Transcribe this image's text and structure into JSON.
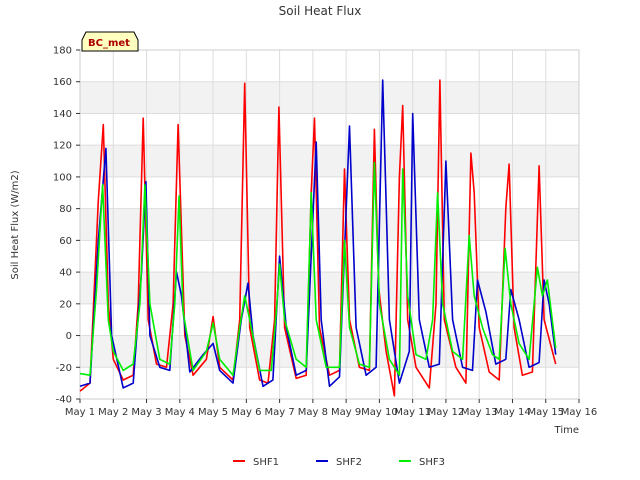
{
  "chart_data": {
    "type": "line",
    "title": "Soil Heat Flux",
    "xlabel": "Time",
    "ylabel": "Soil Heat Flux (W/m2)",
    "badge": "BC_met",
    "ylim": [
      -40,
      180
    ],
    "yticks": [
      -40,
      -20,
      0,
      20,
      40,
      60,
      80,
      100,
      120,
      140,
      160,
      180
    ],
    "xlim": [
      1,
      16
    ],
    "xticks": [
      {
        "value": 1,
        "label": "May 1"
      },
      {
        "value": 2,
        "label": "May 2"
      },
      {
        "value": 3,
        "label": "May 3"
      },
      {
        "value": 4,
        "label": "May 4"
      },
      {
        "value": 5,
        "label": "May 5"
      },
      {
        "value": 6,
        "label": "May 6"
      },
      {
        "value": 7,
        "label": "May 7"
      },
      {
        "value": 8,
        "label": "May 8"
      },
      {
        "value": 9,
        "label": "May 9"
      },
      {
        "value": 10,
        "label": "May 10"
      },
      {
        "value": 11,
        "label": "May 11"
      },
      {
        "value": 12,
        "label": "May 12"
      },
      {
        "value": 13,
        "label": "May 13"
      },
      {
        "value": 14,
        "label": "May 14"
      },
      {
        "value": 15,
        "label": "May 15"
      },
      {
        "value": 16,
        "label": "May 16"
      }
    ],
    "grid": true,
    "legend_position": "bottom",
    "colors": {
      "SHF1": "#ff0000",
      "SHF2": "#0000cc",
      "SHF3": "#00ee00",
      "band": "#f2f2f2",
      "grid": "#dddddd",
      "badge_fill": "#ffffc0"
    },
    "series": [
      {
        "name": "SHF1",
        "color": "#ff0000",
        "points": [
          [
            1.0,
            -35
          ],
          [
            1.3,
            -30
          ],
          [
            1.55,
            85
          ],
          [
            1.7,
            133
          ],
          [
            1.85,
            20
          ],
          [
            2.0,
            -15
          ],
          [
            2.3,
            -28
          ],
          [
            2.6,
            -25
          ],
          [
            2.75,
            20
          ],
          [
            2.9,
            137
          ],
          [
            3.05,
            10
          ],
          [
            3.3,
            -18
          ],
          [
            3.6,
            -20
          ],
          [
            3.8,
            20
          ],
          [
            3.95,
            133
          ],
          [
            4.15,
            0
          ],
          [
            4.4,
            -25
          ],
          [
            4.8,
            -15
          ],
          [
            5.0,
            12
          ],
          [
            5.2,
            -20
          ],
          [
            5.6,
            -28
          ],
          [
            5.8,
            10
          ],
          [
            5.95,
            159
          ],
          [
            6.1,
            5
          ],
          [
            6.4,
            -28
          ],
          [
            6.65,
            -30
          ],
          [
            6.85,
            10
          ],
          [
            6.98,
            144
          ],
          [
            7.15,
            5
          ],
          [
            7.5,
            -27
          ],
          [
            7.8,
            -25
          ],
          [
            7.95,
            90
          ],
          [
            8.05,
            137
          ],
          [
            8.2,
            5
          ],
          [
            8.5,
            -25
          ],
          [
            8.8,
            -22
          ],
          [
            8.95,
            105
          ],
          [
            9.1,
            10
          ],
          [
            9.4,
            -20
          ],
          [
            9.7,
            -22
          ],
          [
            9.85,
            130
          ],
          [
            9.98,
            30
          ],
          [
            10.2,
            -10
          ],
          [
            10.45,
            -38
          ],
          [
            10.6,
            100
          ],
          [
            10.7,
            145
          ],
          [
            10.85,
            10
          ],
          [
            11.1,
            -20
          ],
          [
            11.5,
            -33
          ],
          [
            11.7,
            20
          ],
          [
            11.82,
            161
          ],
          [
            11.95,
            10
          ],
          [
            12.3,
            -20
          ],
          [
            12.6,
            -30
          ],
          [
            12.75,
            115
          ],
          [
            12.85,
            90
          ],
          [
            13.0,
            5
          ],
          [
            13.3,
            -23
          ],
          [
            13.6,
            -28
          ],
          [
            13.8,
            80
          ],
          [
            13.9,
            108
          ],
          [
            14.05,
            5
          ],
          [
            14.3,
            -25
          ],
          [
            14.6,
            -23
          ],
          [
            14.8,
            107
          ],
          [
            14.95,
            10
          ],
          [
            15.2,
            -10
          ],
          [
            15.3,
            -18
          ]
        ]
      },
      {
        "name": "SHF2",
        "color": "#0000cc",
        "points": [
          [
            1.0,
            -32
          ],
          [
            1.3,
            -30
          ],
          [
            1.55,
            60
          ],
          [
            1.78,
            118
          ],
          [
            1.95,
            0
          ],
          [
            2.3,
            -33
          ],
          [
            2.6,
            -30
          ],
          [
            2.85,
            40
          ],
          [
            2.98,
            97
          ],
          [
            3.1,
            0
          ],
          [
            3.4,
            -20
          ],
          [
            3.7,
            -22
          ],
          [
            3.9,
            40
          ],
          [
            4.05,
            25
          ],
          [
            4.3,
            -23
          ],
          [
            4.7,
            -12
          ],
          [
            5.0,
            -5
          ],
          [
            5.2,
            -22
          ],
          [
            5.6,
            -30
          ],
          [
            5.85,
            10
          ],
          [
            6.05,
            33
          ],
          [
            6.2,
            0
          ],
          [
            6.5,
            -32
          ],
          [
            6.8,
            -28
          ],
          [
            7.0,
            50
          ],
          [
            7.2,
            5
          ],
          [
            7.5,
            -25
          ],
          [
            7.8,
            -22
          ],
          [
            8.1,
            122
          ],
          [
            8.25,
            10
          ],
          [
            8.5,
            -32
          ],
          [
            8.8,
            -26
          ],
          [
            9.1,
            132
          ],
          [
            9.3,
            5
          ],
          [
            9.6,
            -25
          ],
          [
            9.9,
            -20
          ],
          [
            10.1,
            161
          ],
          [
            10.3,
            10
          ],
          [
            10.6,
            -30
          ],
          [
            10.9,
            -10
          ],
          [
            11.0,
            140
          ],
          [
            11.2,
            10
          ],
          [
            11.5,
            -20
          ],
          [
            11.8,
            -18
          ],
          [
            12.0,
            110
          ],
          [
            12.2,
            10
          ],
          [
            12.5,
            -20
          ],
          [
            12.8,
            -22
          ],
          [
            12.95,
            35
          ],
          [
            13.2,
            15
          ],
          [
            13.5,
            -18
          ],
          [
            13.8,
            -15
          ],
          [
            13.95,
            29
          ],
          [
            14.2,
            10
          ],
          [
            14.5,
            -20
          ],
          [
            14.8,
            -17
          ],
          [
            14.95,
            35
          ],
          [
            15.1,
            20
          ],
          [
            15.3,
            -12
          ]
        ]
      },
      {
        "name": "SHF3",
        "color": "#00ee00",
        "points": [
          [
            1.0,
            -24
          ],
          [
            1.3,
            -25
          ],
          [
            1.5,
            30
          ],
          [
            1.68,
            95
          ],
          [
            1.85,
            10
          ],
          [
            2.0,
            -10
          ],
          [
            2.3,
            -22
          ],
          [
            2.6,
            -18
          ],
          [
            2.8,
            20
          ],
          [
            2.95,
            95
          ],
          [
            3.1,
            20
          ],
          [
            3.4,
            -15
          ],
          [
            3.7,
            -18
          ],
          [
            3.85,
            20
          ],
          [
            3.98,
            88
          ],
          [
            4.1,
            15
          ],
          [
            4.4,
            -22
          ],
          [
            4.8,
            -10
          ],
          [
            5.0,
            8
          ],
          [
            5.2,
            -15
          ],
          [
            5.6,
            -25
          ],
          [
            5.8,
            5
          ],
          [
            5.95,
            25
          ],
          [
            6.1,
            10
          ],
          [
            6.4,
            -22
          ],
          [
            6.75,
            -22
          ],
          [
            6.9,
            15
          ],
          [
            7.0,
            45
          ],
          [
            7.15,
            10
          ],
          [
            7.5,
            -15
          ],
          [
            7.8,
            -20
          ],
          [
            7.95,
            90
          ],
          [
            8.1,
            10
          ],
          [
            8.4,
            -20
          ],
          [
            8.8,
            -20
          ],
          [
            8.95,
            60
          ],
          [
            9.1,
            5
          ],
          [
            9.4,
            -18
          ],
          [
            9.7,
            -20
          ],
          [
            9.85,
            109
          ],
          [
            10.0,
            20
          ],
          [
            10.3,
            -15
          ],
          [
            10.6,
            -25
          ],
          [
            10.7,
            105
          ],
          [
            10.85,
            25
          ],
          [
            11.1,
            -12
          ],
          [
            11.4,
            -15
          ],
          [
            11.6,
            10
          ],
          [
            11.75,
            90
          ],
          [
            11.9,
            20
          ],
          [
            12.2,
            -10
          ],
          [
            12.5,
            -15
          ],
          [
            12.7,
            63
          ],
          [
            12.85,
            25
          ],
          [
            13.1,
            5
          ],
          [
            13.4,
            -12
          ],
          [
            13.6,
            -15
          ],
          [
            13.78,
            55
          ],
          [
            13.95,
            20
          ],
          [
            14.2,
            -5
          ],
          [
            14.5,
            -15
          ],
          [
            14.75,
            43
          ],
          [
            14.9,
            25
          ],
          [
            15.05,
            35
          ],
          [
            15.3,
            -8
          ]
        ]
      }
    ]
  }
}
